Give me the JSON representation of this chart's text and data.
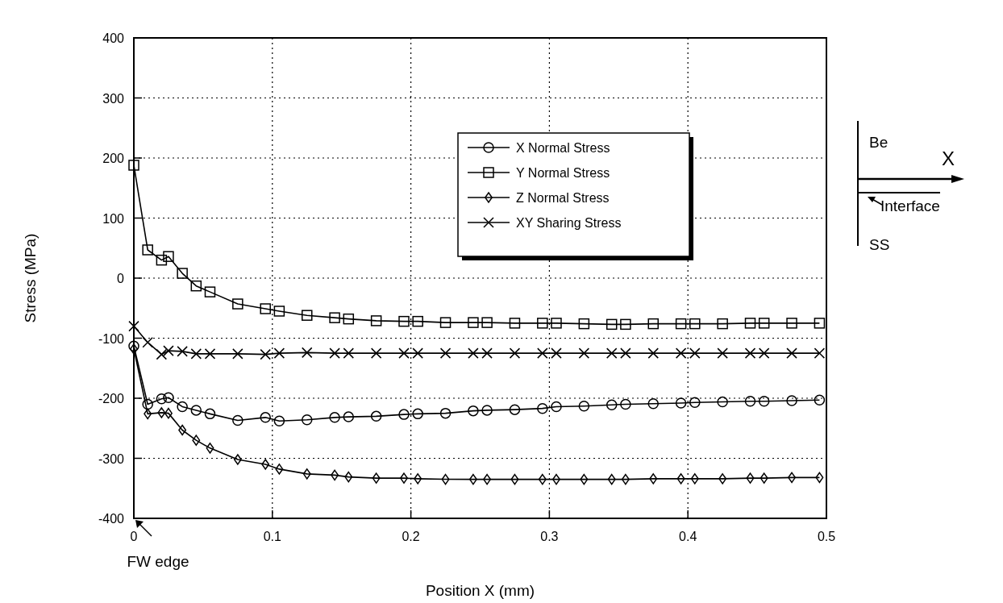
{
  "chart_data": {
    "type": "line",
    "xlabel": "Position X (mm)",
    "ylabel": "Stress (MPa)",
    "x": [
      0,
      0.01,
      0.02,
      0.025,
      0.035,
      0.045,
      0.055,
      0.075,
      0.095,
      0.105,
      0.125,
      0.145,
      0.155,
      0.175,
      0.195,
      0.205,
      0.225,
      0.245,
      0.255,
      0.275,
      0.295,
      0.305,
      0.325,
      0.345,
      0.355,
      0.375,
      0.395,
      0.405,
      0.425,
      0.445,
      0.455,
      0.475,
      0.495
    ],
    "series": [
      {
        "name": "X Normal Stress",
        "color": "#000000",
        "marker": "circle",
        "values": [
          -113,
          -210,
          -201,
          -199,
          -214,
          -220,
          -226,
          -237,
          -232,
          -238,
          -236,
          -232,
          -231,
          -230,
          -227,
          -226,
          -225,
          -221,
          -220,
          -219,
          -217,
          -214,
          -213,
          -211,
          -210,
          -209,
          -208,
          -207,
          -206,
          -205,
          -205,
          -204,
          -203
        ]
      },
      {
        "name": "Y Normal Stress",
        "color": "#000000",
        "marker": "square",
        "values": [
          188,
          47,
          30,
          36,
          8,
          -13,
          -23,
          -43,
          -51,
          -55,
          -62,
          -66,
          -68,
          -71,
          -72,
          -72,
          -74,
          -74,
          -74,
          -75,
          -75,
          -75,
          -76,
          -77,
          -77,
          -76,
          -76,
          -76,
          -76,
          -75,
          -75,
          -75,
          -75
        ]
      },
      {
        "name": "Z Normal Stress",
        "color": "#000000",
        "marker": "diamond",
        "values": [
          -118,
          -226,
          -224,
          -225,
          -253,
          -270,
          -283,
          -302,
          -310,
          -318,
          -326,
          -328,
          -331,
          -333,
          -333,
          -334,
          -335,
          -335,
          -335,
          -335,
          -335,
          -335,
          -335,
          -335,
          -335,
          -334,
          -334,
          -334,
          -334,
          -333,
          -333,
          -332,
          -332
        ]
      },
      {
        "name": "XY Sharing Stress",
        "color": "#000000",
        "marker": "cross",
        "values": [
          -80,
          -107,
          -127,
          -121,
          -122,
          -126,
          -126,
          -126,
          -127,
          -125,
          -124,
          -125,
          -125,
          -125,
          -125,
          -125,
          -125,
          -125,
          -125,
          -125,
          -125,
          -125,
          -125,
          -125,
          -125,
          -125,
          -125,
          -125,
          -125,
          -125,
          -125,
          -125,
          -125
        ]
      }
    ],
    "xlim": [
      0,
      0.5
    ],
    "xticks": [
      0,
      0.1,
      0.2,
      0.3,
      0.4,
      0.5
    ],
    "ylim": [
      -400,
      400
    ],
    "yticks": [
      -400,
      -300,
      -200,
      -100,
      0,
      100,
      200,
      300,
      400
    ],
    "grid": true,
    "legend": "right",
    "line_style": "solid",
    "annotations": [
      "FW edge",
      "Be",
      "X",
      "Interface",
      "SS"
    ]
  }
}
